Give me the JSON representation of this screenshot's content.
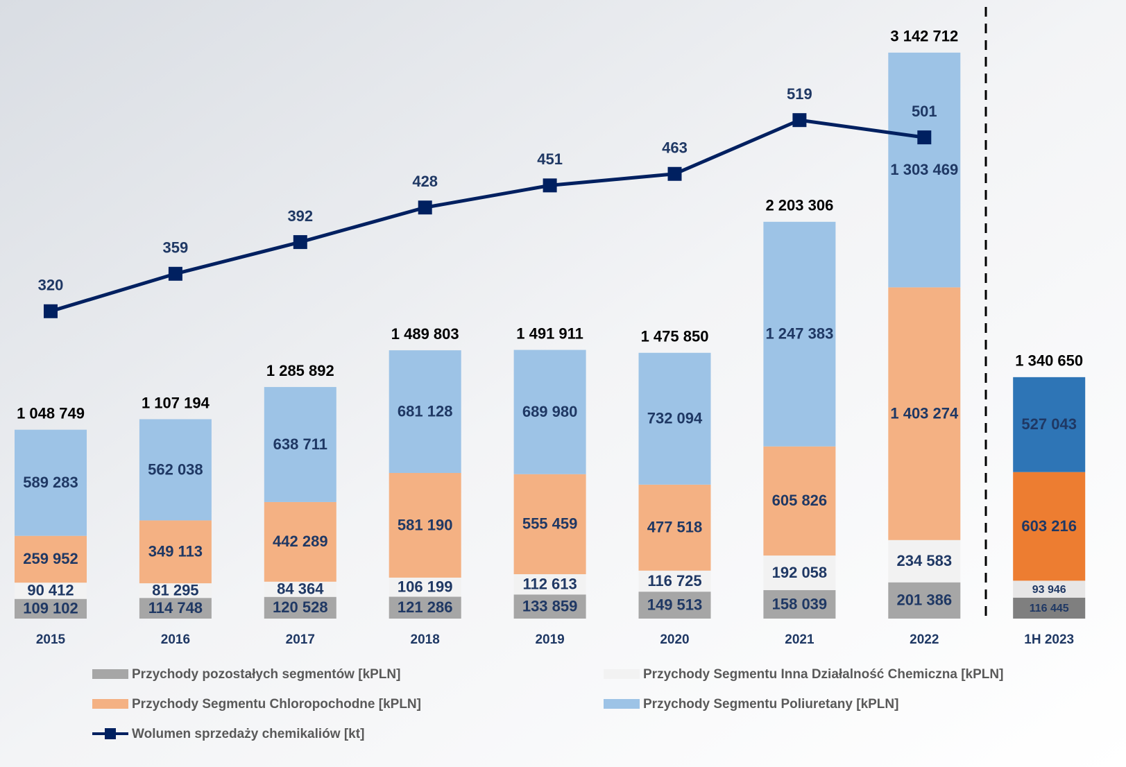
{
  "chart_data": {
    "type": "stacked_bar_line",
    "categories": [
      "2015",
      "2016",
      "2017",
      "2018",
      "2019",
      "2020",
      "2021",
      "2022",
      "1H 2023"
    ],
    "ylim": [
      0,
      3200000
    ],
    "y2lim": [
      0,
      600
    ],
    "series": [
      {
        "name": "Przychody pozostałych segmentów [kPLN]",
        "color": "#a6a6a6",
        "colors": [
          "#a6a6a6",
          "#a6a6a6",
          "#a6a6a6",
          "#a6a6a6",
          "#a6a6a6",
          "#a6a6a6",
          "#a6a6a6",
          "#a6a6a6",
          "#7f7f7f"
        ],
        "values": [
          109102,
          114748,
          120528,
          121286,
          133859,
          149513,
          158039,
          201386,
          116445
        ],
        "value_labels": [
          "109 102",
          "114 748",
          "120 528",
          "121 286",
          "133 859",
          "149 513",
          "158 039",
          "201 386",
          "116 445"
        ]
      },
      {
        "name": "Przychody Segmentu Inna Działalność Chemiczna [kPLN]",
        "color": "#f2f2f2",
        "colors": [
          "#f2f2f2",
          "#f2f2f2",
          "#f2f2f2",
          "#f2f2f2",
          "#f2f2f2",
          "#f2f2f2",
          "#f2f2f2",
          "#f2f2f2",
          "#e7e6e6"
        ],
        "values": [
          90412,
          81295,
          84364,
          106199,
          112613,
          116725,
          192058,
          234583,
          93946
        ],
        "value_labels": [
          "90 412",
          "81 295",
          "84 364",
          "106 199",
          "112 613",
          "116 725",
          "192 058",
          "234 583",
          "93 946"
        ]
      },
      {
        "name": "Przychody Segmentu Chloropochodne [kPLN]",
        "color": "#f4b183",
        "colors": [
          "#f4b183",
          "#f4b183",
          "#f4b183",
          "#f4b183",
          "#f4b183",
          "#f4b183",
          "#f4b183",
          "#f4b183",
          "#ed7d31"
        ],
        "values": [
          259952,
          349113,
          442289,
          581190,
          555459,
          477518,
          605826,
          1403274,
          603216
        ],
        "value_labels": [
          "259 952",
          "349 113",
          "442 289",
          "581 190",
          "555 459",
          "477 518",
          "605 826",
          "1 403 274",
          "603 216"
        ]
      },
      {
        "name": "Przychody Segmentu Poliuretany [kPLN]",
        "color": "#9dc3e6",
        "colors": [
          "#9dc3e6",
          "#9dc3e6",
          "#9dc3e6",
          "#9dc3e6",
          "#9dc3e6",
          "#9dc3e6",
          "#9dc3e6",
          "#9dc3e6",
          "#2e75b6"
        ],
        "values": [
          589283,
          562038,
          638711,
          681128,
          689980,
          732094,
          1247383,
          1303469,
          527043
        ],
        "value_labels": [
          "589 283",
          "562 038",
          "638 711",
          "681 128",
          "689 980",
          "732 094",
          "1 247 383",
          "1 303 469",
          "527 043"
        ]
      },
      {
        "name": "Wolumen sprzedaży chemikaliów [kt]",
        "type": "line",
        "axis": "y2",
        "color": "#002060",
        "values": [
          320,
          359,
          392,
          428,
          451,
          463,
          519,
          501,
          null
        ]
      }
    ],
    "totals": {
      "values": [
        1048749,
        1107194,
        1285892,
        1489803,
        1491911,
        1475850,
        2203306,
        3142712,
        1340650
      ],
      "value_labels": [
        "1 048 749",
        "1 107 194",
        "1 285 892",
        "1 489 803",
        "1 491 911",
        "1 475 850",
        "2 203 306",
        "3 142 712",
        "1 340 650"
      ]
    }
  }
}
